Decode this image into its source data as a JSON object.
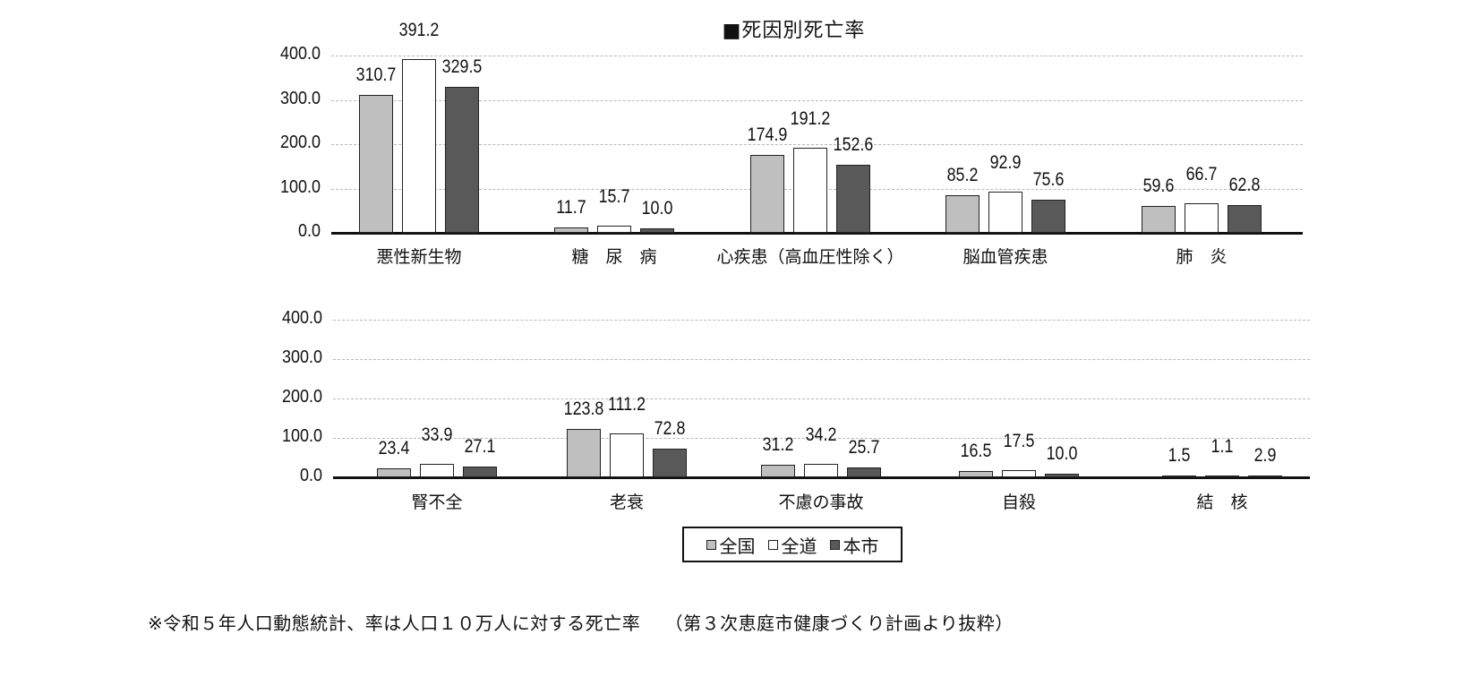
{
  "title": "■死因別死亡率",
  "legend": [
    {
      "name": "全国",
      "color": "#bfbfbf"
    },
    {
      "name": "全道",
      "color": "#ffffff"
    },
    {
      "name": "本市",
      "color": "#595959"
    }
  ],
  "footnote": "※令和５年人口動態統計、率は人口１０万人に対する死亡率　 （第３次恵庭市健康づくり計画より抜粋）",
  "chart_data": [
    {
      "type": "bar",
      "title": "■死因別死亡率",
      "xlabel": "",
      "ylabel": "",
      "ylim": [
        0,
        400
      ],
      "yticks": [
        "0.0",
        "100.0",
        "200.0",
        "300.0",
        "400.0"
      ],
      "grid": true,
      "categories": [
        "悪性新生物",
        "糖　尿　病",
        "心疾患（高血圧性除く）",
        "脳血管疾患",
        "肺　炎"
      ],
      "series": [
        {
          "name": "全国",
          "values": [
            310.7,
            11.7,
            174.9,
            85.2,
            59.6
          ]
        },
        {
          "name": "全道",
          "values": [
            391.2,
            15.7,
            191.2,
            92.9,
            66.7
          ]
        },
        {
          "name": "本市",
          "values": [
            329.5,
            10.0,
            152.6,
            75.6,
            62.8
          ]
        }
      ]
    },
    {
      "type": "bar",
      "title": "",
      "xlabel": "",
      "ylabel": "",
      "ylim": [
        0,
        400
      ],
      "yticks": [
        "0.0",
        "100.0",
        "200.0",
        "300.0",
        "400.0"
      ],
      "grid": true,
      "legend_position": "bottom",
      "categories": [
        "腎不全",
        "老衰",
        "不慮の事故",
        "自殺",
        "結　核"
      ],
      "series": [
        {
          "name": "全国",
          "values": [
            23.4,
            123.8,
            31.2,
            16.5,
            1.5
          ]
        },
        {
          "name": "全道",
          "values": [
            33.9,
            111.2,
            34.2,
            17.5,
            1.1
          ]
        },
        {
          "name": "本市",
          "values": [
            27.1,
            72.8,
            25.7,
            10.0,
            2.9
          ]
        }
      ]
    }
  ]
}
